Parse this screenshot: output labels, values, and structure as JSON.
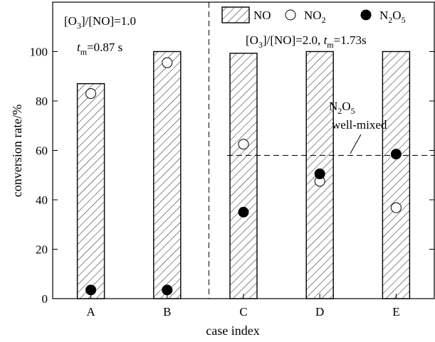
{
  "chart_data": {
    "type": "bar",
    "categories": [
      "A",
      "B",
      "C",
      "D",
      "E"
    ],
    "xlabel": "case index",
    "ylabel": "conversion rate/%",
    "ylim": [
      0,
      120
    ],
    "yticks": [
      0,
      20,
      40,
      60,
      80,
      100
    ],
    "grid": false,
    "legend_position": "top-right",
    "series": [
      {
        "name": "NO",
        "kind": "bar",
        "style": "hatched",
        "values": [
          87,
          100,
          99.3,
          100,
          100
        ]
      },
      {
        "name": "NO2",
        "kind": "scatter",
        "marker": "open-circle",
        "values": [
          83,
          95.5,
          62.5,
          47.5,
          36.8
        ]
      },
      {
        "name": "N2O5",
        "kind": "scatter",
        "marker": "filled-circle",
        "values": [
          3.5,
          3.5,
          35,
          50.5,
          58.5
        ]
      }
    ],
    "legend": {
      "no": {
        "label": "NO"
      },
      "no2": {
        "main": "NO",
        "sub": "2"
      },
      "n2o5": {
        "a": "N",
        "b": "2",
        "c": "O",
        "d": "5"
      }
    },
    "reference_line": {
      "y": 58,
      "from_category": "C",
      "label_line1": {
        "a": "N",
        "b": "2",
        "c": "O",
        "d": "5"
      },
      "label_line2": "well-mixed"
    },
    "separator": {
      "between": [
        "B",
        "C"
      ]
    },
    "annotations": {
      "left_ratio": {
        "a": "[O",
        "b": "3",
        "c": "]/[NO]=1.0"
      },
      "left_time": {
        "t": "t",
        "sub": "m",
        "val": "=0.87 s"
      },
      "right": {
        "a": "[O",
        "b": "3",
        "c": "]/[NO]=2.0, ",
        "t": "t",
        "sub": "m",
        "val": "=1.73s"
      }
    }
  }
}
